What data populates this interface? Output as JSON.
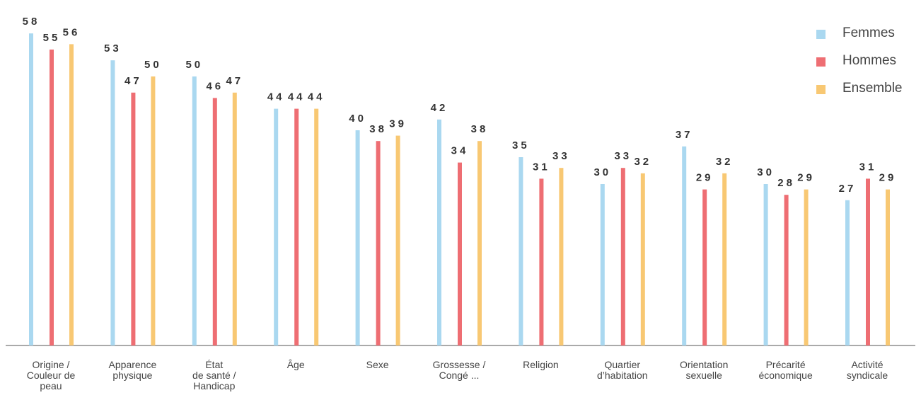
{
  "chart_data": {
    "type": "bar",
    "title": "",
    "xlabel": "",
    "ylabel": "",
    "ylim": [
      0,
      60
    ],
    "grid": false,
    "legend_position": "top-right",
    "categories": [
      "Origine /\nCouleur de\npeau",
      "Apparence\nphysique",
      "État\nde santé /\nHandicap",
      "Âge",
      "Sexe",
      "Grossesse /\nCongé ...",
      "Religion",
      "Quartier\nd’habitation",
      "Orientation\nsexuelle",
      "Précarité\néconomique",
      "Activité\nsyndicale"
    ],
    "series": [
      {
        "name": "Femmes",
        "color": "#aad8f0",
        "values": [
          58,
          53,
          50,
          44,
          40,
          42,
          35,
          30,
          37,
          30,
          27
        ]
      },
      {
        "name": "Hommes",
        "color": "#ee6e73",
        "values": [
          55,
          47,
          46,
          44,
          38,
          34,
          31,
          33,
          29,
          28,
          31
        ]
      },
      {
        "name": "Ensemble",
        "color": "#f8c873",
        "values": [
          56,
          50,
          47,
          44,
          39,
          38,
          33,
          32,
          32,
          29,
          29
        ]
      }
    ]
  }
}
